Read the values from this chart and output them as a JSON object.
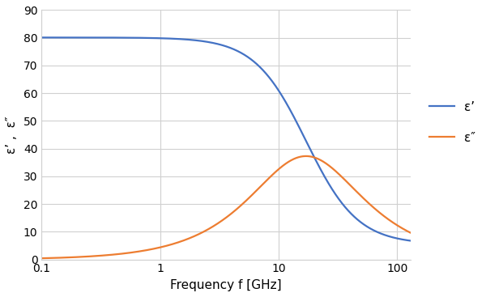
{
  "title": "",
  "xlabel": "Frequency f [GHz]",
  "ylabel": "ε’ ,  ε″",
  "xlim": [
    0.1,
    130
  ],
  "ylim": [
    0,
    90
  ],
  "yticks": [
    0,
    10,
    20,
    30,
    40,
    50,
    60,
    70,
    80,
    90
  ],
  "xticks": [
    0.1,
    1,
    10,
    100
  ],
  "xtick_labels": [
    "0.1",
    "1",
    "10",
    "100"
  ],
  "legend_labels": [
    "ε’",
    "ε″"
  ],
  "line_colors": [
    "#4472C4",
    "#ED7D31"
  ],
  "eps_s": 80.1,
  "eps_inf": 5.5,
  "f_relax_GHz": 17.0,
  "background_color": "#ffffff",
  "grid_color": "#d0d0d0",
  "line_width": 1.6,
  "figsize": [
    6.0,
    3.67
  ],
  "dpi": 100
}
